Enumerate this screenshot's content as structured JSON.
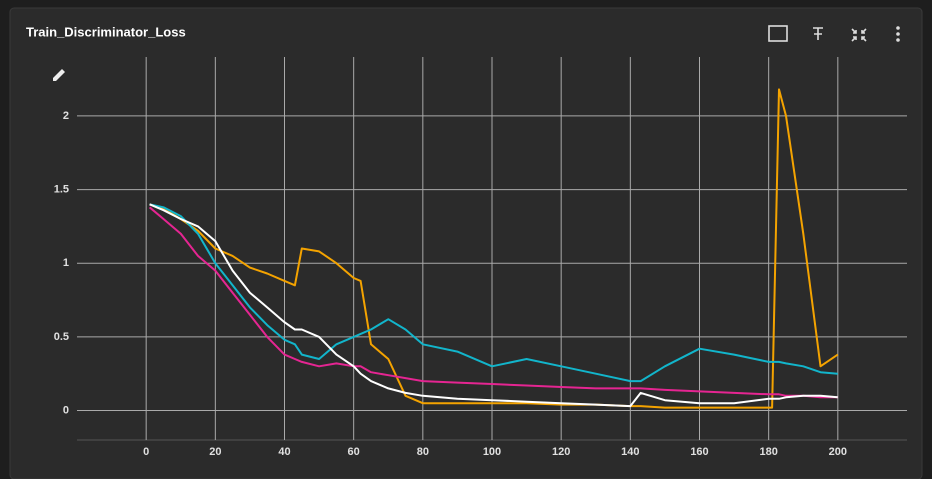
{
  "chart_data": {
    "type": "line",
    "title": "Train_Discriminator_Loss",
    "x": [
      1,
      5,
      10,
      15,
      20,
      25,
      30,
      35,
      40,
      43,
      45,
      50,
      55,
      60,
      62,
      65,
      70,
      75,
      80,
      90,
      100,
      110,
      120,
      130,
      140,
      143,
      150,
      160,
      170,
      180,
      181,
      183,
      185,
      190,
      195,
      200
    ],
    "series": [
      {
        "color": "#f4a300",
        "values": [
          1.4,
          1.37,
          1.3,
          1.22,
          1.1,
          1.05,
          0.97,
          0.93,
          0.88,
          0.85,
          1.1,
          1.08,
          1.0,
          0.9,
          0.88,
          0.45,
          0.35,
          0.1,
          0.05,
          0.05,
          0.05,
          0.05,
          0.04,
          0.04,
          0.03,
          0.03,
          0.02,
          0.02,
          0.02,
          0.02,
          0.02,
          2.18,
          2.0,
          1.2,
          0.3,
          0.38
        ]
      },
      {
        "color": "#12b5cb",
        "values": [
          1.4,
          1.38,
          1.32,
          1.2,
          1.0,
          0.85,
          0.7,
          0.58,
          0.48,
          0.45,
          0.38,
          0.35,
          0.45,
          0.5,
          0.52,
          0.55,
          0.62,
          0.55,
          0.45,
          0.4,
          0.3,
          0.35,
          0.3,
          0.25,
          0.2,
          0.2,
          0.3,
          0.42,
          0.38,
          0.33,
          0.33,
          0.33,
          0.32,
          0.3,
          0.26,
          0.25
        ]
      },
      {
        "color": "#e52592",
        "values": [
          1.38,
          1.3,
          1.2,
          1.05,
          0.95,
          0.8,
          0.65,
          0.5,
          0.38,
          0.35,
          0.33,
          0.3,
          0.32,
          0.3,
          0.3,
          0.26,
          0.24,
          0.22,
          0.2,
          0.19,
          0.18,
          0.17,
          0.16,
          0.15,
          0.15,
          0.15,
          0.14,
          0.13,
          0.12,
          0.11,
          0.11,
          0.11,
          0.1,
          0.1,
          0.09,
          0.09
        ]
      },
      {
        "color": "#ffffff",
        "values": [
          1.4,
          1.36,
          1.3,
          1.25,
          1.15,
          0.95,
          0.8,
          0.7,
          0.6,
          0.55,
          0.55,
          0.5,
          0.38,
          0.3,
          0.25,
          0.2,
          0.15,
          0.12,
          0.1,
          0.08,
          0.07,
          0.06,
          0.05,
          0.04,
          0.03,
          0.12,
          0.07,
          0.05,
          0.05,
          0.08,
          0.08,
          0.08,
          0.09,
          0.1,
          0.1,
          0.09
        ]
      }
    ],
    "xlim": [
      -20,
      220
    ],
    "ylim": [
      -0.2,
      2.4
    ],
    "xticks": [
      0,
      20,
      40,
      60,
      80,
      100,
      120,
      140,
      160,
      180,
      200
    ],
    "yticks": [
      0,
      0.5,
      1,
      1.5,
      2
    ],
    "grid": true
  }
}
